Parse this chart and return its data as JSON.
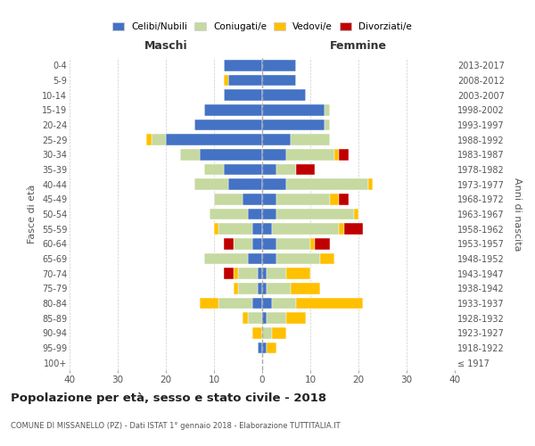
{
  "age_groups": [
    "100+",
    "95-99",
    "90-94",
    "85-89",
    "80-84",
    "75-79",
    "70-74",
    "65-69",
    "60-64",
    "55-59",
    "50-54",
    "45-49",
    "40-44",
    "35-39",
    "30-34",
    "25-29",
    "20-24",
    "15-19",
    "10-14",
    "5-9",
    "0-4"
  ],
  "birth_years": [
    "≤ 1917",
    "1918-1922",
    "1923-1927",
    "1928-1932",
    "1933-1937",
    "1938-1942",
    "1943-1947",
    "1948-1952",
    "1953-1957",
    "1958-1962",
    "1963-1967",
    "1968-1972",
    "1973-1977",
    "1978-1982",
    "1983-1987",
    "1988-1992",
    "1993-1997",
    "1998-2002",
    "2003-2007",
    "2008-2012",
    "2013-2017"
  ],
  "colors": {
    "celibi": "#4472c4",
    "coniugati": "#c5d9a0",
    "vedovi": "#ffc000",
    "divorziati": "#c00000"
  },
  "male": {
    "celibi": [
      0,
      1,
      0,
      0,
      2,
      1,
      1,
      3,
      2,
      2,
      3,
      4,
      7,
      8,
      13,
      20,
      14,
      12,
      8,
      7,
      8
    ],
    "coniugati": [
      0,
      0,
      0,
      3,
      7,
      4,
      4,
      9,
      4,
      7,
      8,
      6,
      7,
      4,
      4,
      3,
      0,
      0,
      0,
      0,
      0
    ],
    "vedovi": [
      0,
      0,
      2,
      1,
      4,
      1,
      1,
      0,
      0,
      1,
      0,
      0,
      0,
      0,
      0,
      1,
      0,
      0,
      0,
      1,
      0
    ],
    "divorziati": [
      0,
      0,
      0,
      0,
      0,
      0,
      2,
      0,
      2,
      0,
      0,
      0,
      0,
      0,
      0,
      0,
      0,
      0,
      0,
      0,
      0
    ]
  },
  "female": {
    "celibi": [
      0,
      1,
      0,
      1,
      2,
      1,
      1,
      3,
      3,
      2,
      3,
      3,
      5,
      3,
      5,
      6,
      13,
      13,
      9,
      7,
      7
    ],
    "coniugati": [
      0,
      0,
      2,
      4,
      5,
      5,
      4,
      9,
      7,
      14,
      16,
      11,
      17,
      4,
      10,
      8,
      1,
      1,
      0,
      0,
      0
    ],
    "vedovi": [
      0,
      2,
      3,
      4,
      14,
      6,
      5,
      3,
      1,
      1,
      1,
      2,
      1,
      0,
      1,
      0,
      0,
      0,
      0,
      0,
      0
    ],
    "divorziati": [
      0,
      0,
      0,
      0,
      0,
      0,
      0,
      0,
      3,
      4,
      0,
      2,
      0,
      4,
      2,
      0,
      0,
      0,
      0,
      0,
      0
    ]
  },
  "xlim": 40,
  "title": "Popolazione per età, sesso e stato civile - 2018",
  "subtitle": "COMUNE DI MISSANELLO (PZ) - Dati ISTAT 1° gennaio 2018 - Elaborazione TUTTITALIA.IT",
  "xlabel_left": "Maschi",
  "xlabel_right": "Femmine",
  "ylabel_left": "Fasce di età",
  "ylabel_right": "Anni di nascita",
  "legend_labels": [
    "Celibi/Nubili",
    "Coniugati/e",
    "Vedovi/e",
    "Divorziati/e"
  ],
  "bg_color": "#ffffff",
  "grid_color": "#cccccc"
}
